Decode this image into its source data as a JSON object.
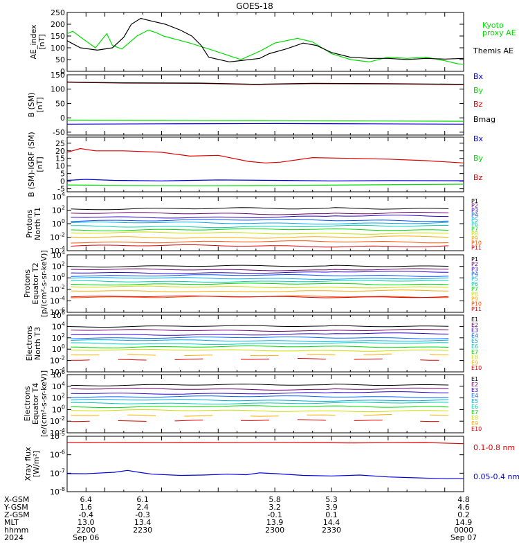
{
  "title": "GOES-18",
  "colors": {
    "black": "#000000",
    "green": "#00dd00",
    "red": "#dd0000",
    "blue": "#0000dd",
    "p_palette": [
      "#000000",
      "#6a006a",
      "#2a00c8",
      "#0050ff",
      "#00aaee",
      "#00d0b0",
      "#00dd00",
      "#c8dd00",
      "#ffaa00",
      "#ff5000",
      "#dd0000",
      "#a00000"
    ],
    "e_palette": [
      "#000000",
      "#6a006a",
      "#2a00c8",
      "#0066ff",
      "#00aadd",
      "#00ccbb",
      "#00dd00",
      "#ccdd00",
      "#ffaa00",
      "#dd0000",
      "#aa0000"
    ]
  },
  "time": {
    "start_min": 2190,
    "end_min": 2400,
    "ticks": [
      2200,
      2230,
      2300,
      2330,
      2400
    ]
  },
  "chart_data": [
    {
      "id": "ae",
      "type": "line",
      "ylabel": "AE_index\n[nT]",
      "scale": "linear",
      "ylim": [
        0,
        250
      ],
      "ytick_labels": [
        "0",
        "50",
        "100",
        "150",
        "200",
        "250"
      ],
      "ytick_values": [
        0,
        50,
        100,
        150,
        200,
        250
      ],
      "series": [
        {
          "name": "Kyoto\nproxy AE",
          "color": "green",
          "t": [
            2190,
            2193,
            2198,
            2205,
            2211,
            2214,
            2219,
            2227,
            2233,
            2237,
            2241,
            2248,
            2255,
            2265,
            2282,
            2292,
            2300,
            2312,
            2320,
            2330,
            2340,
            2350,
            2360,
            2370,
            2380,
            2390,
            2397,
            2400
          ],
          "v": [
            160,
            170,
            140,
            100,
            160,
            110,
            95,
            150,
            175,
            165,
            150,
            135,
            120,
            95,
            50,
            85,
            120,
            140,
            125,
            75,
            50,
            40,
            60,
            55,
            60,
            45,
            32,
            30
          ]
        },
        {
          "name": "Themis AE",
          "color": "black",
          "t": [
            2190,
            2197,
            2206,
            2214,
            2220,
            2224,
            2229,
            2234,
            2242,
            2250,
            2256,
            2261,
            2265,
            2276,
            2292,
            2297,
            2306,
            2315,
            2322,
            2330,
            2340,
            2350,
            2360,
            2370,
            2380,
            2390,
            2400
          ],
          "v": [
            130,
            100,
            90,
            100,
            145,
            200,
            225,
            215,
            200,
            175,
            150,
            110,
            60,
            40,
            55,
            75,
            95,
            120,
            110,
            80,
            60,
            55,
            55,
            50,
            55,
            52,
            55
          ]
        }
      ]
    },
    {
      "id": "b",
      "type": "line",
      "ylabel": "B (SM)\n[nT]",
      "scale": "linear",
      "ylim": [
        -60,
        150
      ],
      "ytick_labels": [
        "-50",
        "0",
        "50",
        "100",
        "150"
      ],
      "ytick_values": [
        -50,
        0,
        50,
        100,
        150
      ],
      "series": [
        {
          "name": "Bx",
          "color": "blue",
          "t": [
            2190,
            2240,
            2300,
            2350,
            2400
          ],
          "v": [
            -22,
            -21,
            -20,
            -21,
            -22
          ]
        },
        {
          "name": "By",
          "color": "green",
          "t": [
            2190,
            2240,
            2300,
            2350,
            2400
          ],
          "v": [
            -8,
            -9,
            -10,
            -11,
            -12
          ]
        },
        {
          "name": "Bz",
          "color": "red",
          "t": [
            2190,
            2220,
            2260,
            2290,
            2320,
            2360,
            2400
          ],
          "v": [
            124,
            121,
            120,
            116,
            119,
            118,
            116
          ]
        },
        {
          "name": "Bmag",
          "color": "black",
          "t": [
            2190,
            2220,
            2260,
            2290,
            2320,
            2360,
            2400
          ],
          "v": [
            125,
            122,
            121,
            117,
            120,
            119,
            117
          ]
        }
      ]
    },
    {
      "id": "bigrf",
      "type": "line",
      "ylabel": "B (SM)-IGRF (SM)\n[nT]",
      "scale": "linear",
      "ylim": [
        -7,
        29
      ],
      "ytick_labels": [
        "-5",
        "0",
        "5",
        "10",
        "15",
        "20",
        "25"
      ],
      "ytick_values": [
        -5,
        0,
        5,
        10,
        15,
        20,
        25
      ],
      "series": [
        {
          "name": "Bx",
          "color": "blue",
          "t": [
            2190,
            2200,
            2215,
            2240,
            2270,
            2300,
            2330,
            2360,
            2400
          ],
          "v": [
            0.5,
            1.2,
            0.5,
            0.2,
            0.8,
            0.5,
            0.2,
            0.4,
            0.3
          ]
        },
        {
          "name": "By",
          "color": "green",
          "t": [
            2190,
            2220,
            2260,
            2300,
            2340,
            2400
          ],
          "v": [
            -2.5,
            -2.8,
            -3,
            -2.8,
            -2.5,
            -2
          ]
        },
        {
          "name": "Bz",
          "color": "red",
          "t": [
            2190,
            2197,
            2205,
            2220,
            2240,
            2255,
            2270,
            2286,
            2295,
            2303,
            2320,
            2340,
            2360,
            2380,
            2400
          ],
          "v": [
            19,
            21.5,
            20,
            20,
            19,
            16.5,
            17,
            13,
            12,
            12.5,
            15.5,
            15,
            14.5,
            13.5,
            12
          ]
        }
      ]
    },
    {
      "id": "protons_north",
      "type": "line",
      "ylabel": "Protons\nNorth T1",
      "scale": "log",
      "ylim": [
        -4,
        4
      ],
      "ytick_labels": [
        "10-4",
        "10-2",
        "100",
        "102",
        "104"
      ],
      "ytick_exps": [
        -4,
        -2,
        0,
        2,
        4
      ],
      "channel_labels": [
        "P1",
        "P2",
        "P3",
        "P4",
        "P5",
        "P6",
        "P7",
        "P8",
        "P9",
        "P10",
        "P11"
      ],
      "levels": [
        2.2,
        1.5,
        1.0,
        0.5,
        0.1,
        -0.4,
        -0.9,
        -1.4,
        -2.0,
        -2.7,
        -3.3
      ]
    },
    {
      "id": "protons_equator",
      "type": "line",
      "ylabel": "Protons\nEquator T2\n[p/(cm²-s-sr-keV)]",
      "scale": "log",
      "ylim": [
        -6,
        4
      ],
      "ytick_labels": [
        "10-6",
        "10-4",
        "10-2",
        "100",
        "102",
        "104"
      ],
      "ytick_exps": [
        -6,
        -4,
        -2,
        0,
        2,
        4
      ],
      "channel_labels": [
        "P1",
        "P2",
        "P3",
        "P4",
        "P5",
        "P6",
        "P7",
        "P8",
        "P9",
        "P10",
        "P11"
      ],
      "levels": [
        2.0,
        1.4,
        0.9,
        0.4,
        -0.1,
        -0.6,
        -1.1,
        -1.6,
        -2.3,
        -3.3,
        -3.3
      ]
    },
    {
      "id": "electrons_north",
      "type": "line",
      "ylabel": "Electrons\nNorth T3",
      "scale": "log",
      "ylim": [
        -4,
        6
      ],
      "ytick_labels": [
        "10-4",
        "10-2",
        "100",
        "102",
        "104",
        "106"
      ],
      "ytick_exps": [
        -4,
        -2,
        0,
        2,
        4,
        6
      ],
      "channel_labels": [
        "E1",
        "E2",
        "E3",
        "E4",
        "E5",
        "E6",
        "E7",
        "E8",
        "E9",
        "E10"
      ],
      "levels": [
        4.0,
        3.3,
        2.6,
        2.0,
        1.5,
        1.0,
        0.4,
        -0.2,
        -1.0,
        -1.8
      ]
    },
    {
      "id": "electrons_equator",
      "type": "line",
      "ylabel": "Electrons\nEquator T4\n[e/(cm²-s-sr-keV)]",
      "scale": "log",
      "ylim": [
        -4,
        6
      ],
      "ytick_labels": [
        "10-4",
        "10-2",
        "100",
        "102",
        "104",
        "106"
      ],
      "ytick_exps": [
        -4,
        -2,
        0,
        2,
        4,
        6
      ],
      "channel_labels": [
        "E1",
        "E2",
        "E3",
        "E4",
        "E5",
        "E6",
        "E7",
        "E8",
        "E9",
        "E10"
      ],
      "levels": [
        4.2,
        3.5,
        2.8,
        2.2,
        1.6,
        1.1,
        0.5,
        -0.2,
        -1.0,
        -1.9
      ]
    },
    {
      "id": "xray",
      "type": "line",
      "ylabel": "Xray flux\n[W/m²]",
      "scale": "log",
      "ylim": [
        -8,
        -5
      ],
      "ytick_labels": [
        "10-8",
        "10-7",
        "10-6",
        "10-5"
      ],
      "ytick_exps": [
        -8,
        -7,
        -6,
        -5
      ],
      "series": [
        {
          "name": "0.1-0.8 nm",
          "color": "red",
          "t": [
            2190,
            2210,
            2225,
            2240,
            2260,
            2280,
            2300,
            2320,
            2340,
            2360,
            2380,
            2400
          ],
          "v": [
            -5.35,
            -5.33,
            -5.34,
            -5.35,
            -5.34,
            -5.35,
            -5.33,
            -5.34,
            -5.36,
            -5.35,
            -5.34,
            -5.4
          ]
        },
        {
          "name": "0.05-0.4 nm",
          "color": "blue",
          "t": [
            2190,
            2200,
            2215,
            2222,
            2228,
            2235,
            2250,
            2262,
            2275,
            2285,
            2292,
            2300,
            2315,
            2330,
            2345,
            2360,
            2375,
            2390,
            2400
          ],
          "v": [
            -7.02,
            -7.03,
            -6.95,
            -6.85,
            -6.95,
            -7.05,
            -7.12,
            -7.1,
            -7.05,
            -7.08,
            -6.98,
            -7.02,
            -7.12,
            -7.15,
            -7.1,
            -7.2,
            -7.25,
            -7.3,
            -7.3
          ]
        }
      ]
    }
  ],
  "orbit": {
    "rows": [
      "X-GSM",
      "Y-GSM",
      "Z-GSM",
      "MLT",
      "hhmm",
      "2024"
    ],
    "values": [
      [
        "6.4",
        "6.1",
        "5.8",
        "5.3",
        "4.8"
      ],
      [
        "1.6",
        "2.4",
        "3.2",
        "3.9",
        "4.6"
      ],
      [
        "-0.4",
        "-0.3",
        "-0.1",
        "0.1",
        "0.2"
      ],
      [
        "13.0",
        "13.4",
        "13.9",
        "14.4",
        "14.9"
      ],
      [
        "2200",
        "2230",
        "2300",
        "2330",
        "0000"
      ],
      [
        "Sep 06",
        "",
        "",
        "",
        "Sep 07"
      ]
    ]
  }
}
